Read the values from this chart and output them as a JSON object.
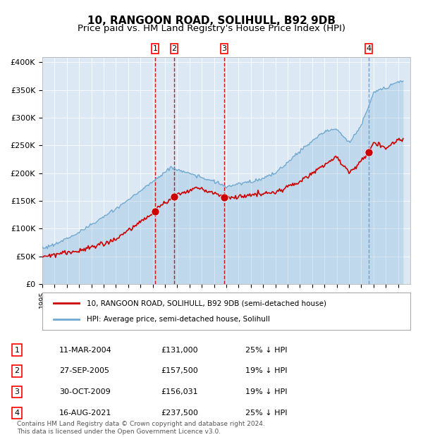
{
  "title": "10, RANGOON ROAD, SOLIHULL, B92 9DB",
  "subtitle": "Price paid vs. HM Land Registry's House Price Index (HPI)",
  "title_fontsize": 11,
  "subtitle_fontsize": 9.5,
  "background_color": "#ffffff",
  "plot_bg_color": "#dce9f5",
  "hpi_color": "#6fa8d0",
  "price_color": "#cc0000",
  "ylim": [
    0,
    410000
  ],
  "yticks": [
    0,
    50000,
    100000,
    150000,
    200000,
    250000,
    300000,
    350000,
    400000
  ],
  "ytick_labels": [
    "£0",
    "£50K",
    "£100K",
    "£150K",
    "£200K",
    "£250K",
    "£300K",
    "£350K",
    "£400K"
  ],
  "transactions": [
    {
      "num": 1,
      "date_str": "11-MAR-2004",
      "date_x": 2004.19,
      "price": 131000,
      "pct": "25%",
      "vline_color": "#cc0000"
    },
    {
      "num": 2,
      "date_str": "27-SEP-2005",
      "date_x": 2005.74,
      "price": 157500,
      "pct": "19%",
      "vline_color": "#cc0000"
    },
    {
      "num": 3,
      "date_str": "30-OCT-2009",
      "date_x": 2009.83,
      "price": 156031,
      "pct": "19%",
      "vline_color": "#cc0000"
    },
    {
      "num": 4,
      "date_str": "16-AUG-2021",
      "date_x": 2021.62,
      "price": 237500,
      "pct": "25%",
      "vline_color": "#6699cc"
    }
  ],
  "legend_line1": "10, RANGOON ROAD, SOLIHULL, B92 9DB (semi-detached house)",
  "legend_line2": "HPI: Average price, semi-detached house, Solihull",
  "footer": "Contains HM Land Registry data © Crown copyright and database right 2024.\nThis data is licensed under the Open Government Licence v3.0.",
  "xmin": 1995.0,
  "xmax": 2025.0
}
